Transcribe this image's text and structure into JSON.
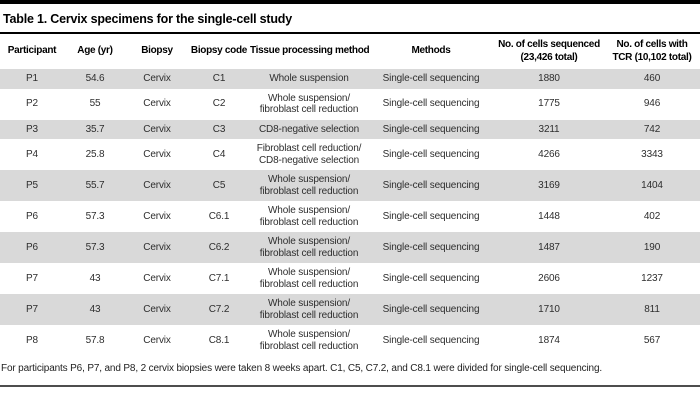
{
  "title": "Table 1. Cervix specimens for the single-cell study",
  "table": {
    "columns": [
      "Participant",
      "Age (yr)",
      "Biopsy",
      "Biopsy code",
      "Tissue processing method",
      "Methods",
      "No. of cells sequenced\n(23,426 total)",
      "No. of cells with\nTCR (10,102 total)"
    ],
    "rows": [
      [
        "P1",
        "54.6",
        "Cervix",
        "C1",
        "Whole suspension",
        "Single-cell sequencing",
        "1880",
        "460"
      ],
      [
        "P2",
        "55",
        "Cervix",
        "C2",
        "Whole suspension/\nfibroblast cell reduction",
        "Single-cell sequencing",
        "1775",
        "946"
      ],
      [
        "P3",
        "35.7",
        "Cervix",
        "C3",
        "CD8-negative selection",
        "Single-cell sequencing",
        "3211",
        "742"
      ],
      [
        "P4",
        "25.8",
        "Cervix",
        "C4",
        "Fibroblast cell reduction/\nCD8-negative selection",
        "Single-cell sequencing",
        "4266",
        "3343"
      ],
      [
        "P5",
        "55.7",
        "Cervix",
        "C5",
        "Whole suspension/\nfibroblast cell reduction",
        "Single-cell sequencing",
        "3169",
        "1404"
      ],
      [
        "P6",
        "57.3",
        "Cervix",
        "C6.1",
        "Whole suspension/\nfibroblast cell reduction",
        "Single-cell sequencing",
        "1448",
        "402"
      ],
      [
        "P6",
        "57.3",
        "Cervix",
        "C6.2",
        "Whole suspension/\nfibroblast cell reduction",
        "Single-cell sequencing",
        "1487",
        "190"
      ],
      [
        "P7",
        "43",
        "Cervix",
        "C7.1",
        "Whole suspension/\nfibroblast cell reduction",
        "Single-cell sequencing",
        "2606",
        "1237"
      ],
      [
        "P7",
        "43",
        "Cervix",
        "C7.2",
        "Whole suspension/\nfibroblast cell reduction",
        "Single-cell sequencing",
        "1710",
        "811"
      ],
      [
        "P8",
        "57.8",
        "Cervix",
        "C8.1",
        "Whole suspension/\nfibroblast cell reduction",
        "Single-cell sequencing",
        "1874",
        "567"
      ]
    ]
  },
  "footnote": "For participants P6, P7, and P8, 2 cervix biopsies were taken 8 weeks apart. C1, C5, C7.2, and C8.1 were divided for single-cell sequencing.",
  "colors": {
    "row_shaded": "#d9d9d9",
    "rule_top": "#000000",
    "rule_bottom": "#4d4d4d",
    "body_text": "#2e2e2e"
  }
}
